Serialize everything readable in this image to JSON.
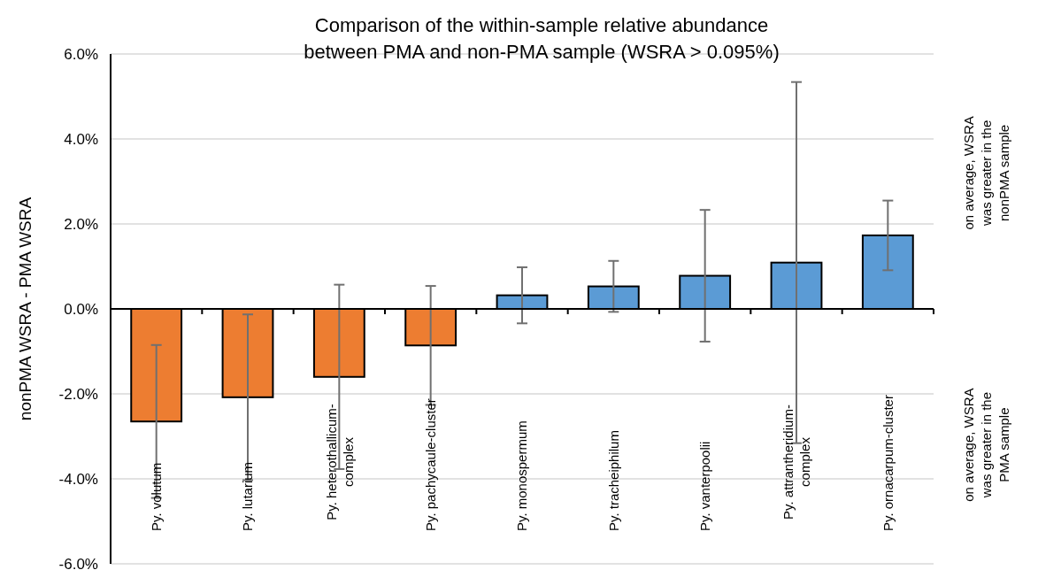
{
  "chart_data": {
    "type": "bar",
    "title": "Comparison of the within-sample relative abundance\nbetween PMA and non-PMA sample (WSRA > 0.095%)",
    "ylabel": "nonPMA WSRA - PMA WSRA",
    "categories": [
      "Py. volutum",
      "Py. lutarium",
      "Py. heterothallicum-\ncomplex",
      "Py. pachycaule-cluster",
      "Py. monospermum",
      "Py. tracheiphilum",
      "Py. vanterpoolii",
      "Py. attrantheridium-\ncomplex",
      "Py. ornacarpum-cluster"
    ],
    "values": [
      -2.65,
      -2.08,
      -1.6,
      -0.86,
      0.32,
      0.53,
      0.78,
      1.09,
      1.73
    ],
    "errors": [
      1.8,
      1.95,
      2.17,
      1.4,
      0.66,
      0.6,
      1.55,
      4.25,
      0.82
    ],
    "colors": [
      "#ed7d31",
      "#ed7d31",
      "#ed7d31",
      "#ed7d31",
      "#5b9bd5",
      "#5b9bd5",
      "#5b9bd5",
      "#5b9bd5",
      "#5b9bd5"
    ],
    "ylim": [
      -6,
      6
    ],
    "yticks": [
      {
        "value": -6,
        "label": "-6.0%"
      },
      {
        "value": -4,
        "label": "-4.0%"
      },
      {
        "value": -2,
        "label": "-2.0%"
      },
      {
        "value": 0,
        "label": "0.0%"
      },
      {
        "value": 2,
        "label": "2.0%"
      },
      {
        "value": 4,
        "label": "4.0%"
      },
      {
        "value": 6,
        "label": "6.0%"
      }
    ],
    "grid": "y",
    "annotations": [
      "on average, WSRA\nwas greater in the\nnonPMA sample",
      "on average, WSRA\nwas greater in the\nPMA sample"
    ]
  }
}
